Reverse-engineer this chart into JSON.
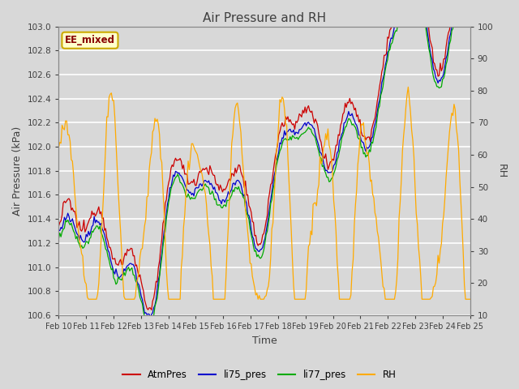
{
  "title": "Air Pressure and RH",
  "xlabel": "Time",
  "ylabel_left": "Air Pressure (kPa)",
  "ylabel_right": "RH",
  "annotation": "EE_mixed",
  "ylim_left": [
    100.6,
    103.0
  ],
  "ylim_right": [
    10,
    100
  ],
  "yticks_left": [
    100.6,
    100.8,
    101.0,
    101.2,
    101.4,
    101.6,
    101.8,
    102.0,
    102.2,
    102.4,
    102.6,
    102.8,
    103.0
  ],
  "yticks_right": [
    10,
    20,
    30,
    40,
    50,
    60,
    70,
    80,
    90,
    100
  ],
  "xtick_labels": [
    "Feb 10",
    "Feb 11",
    "Feb 12",
    "Feb 13",
    "Feb 14",
    "Feb 15",
    "Feb 16",
    "Feb 17",
    "Feb 18",
    "Feb 19",
    "Feb 20",
    "Feb 21",
    "Feb 22",
    "Feb 23",
    "Feb 24",
    "Feb 25"
  ],
  "colors": {
    "AtmPres": "#cc0000",
    "li75_pres": "#0000cc",
    "li77_pres": "#00aa00",
    "RH": "#ffaa00"
  },
  "bg_color": "#d8d8d8",
  "plot_bg_color": "#d8d8d8",
  "grid_color": "white",
  "title_color": "#404040",
  "annotation_bg": "#ffffcc",
  "annotation_border": "#ccaa00",
  "annotation_text_color": "#880000",
  "figsize": [
    6.4,
    4.8
  ],
  "dpi": 100
}
